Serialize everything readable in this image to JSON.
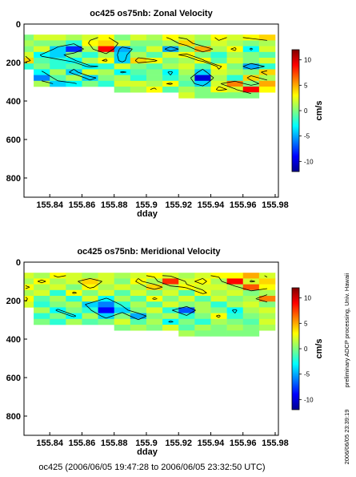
{
  "chart_data": [
    {
      "type": "heatmap",
      "title": "oc425 os75nb: Zonal Velocity",
      "xlabel": "dday",
      "ylabel": "",
      "xlim": [
        155.824,
        155.982
      ],
      "ylim": [
        900,
        0
      ],
      "x_ticks": [
        "155.84",
        "155.86",
        "155.88",
        "155.9",
        "155.92",
        "155.94",
        "155.96",
        "155.98"
      ],
      "y_ticks": [
        "0",
        "200",
        "400",
        "600",
        "800"
      ],
      "colorbar": {
        "label": "cm/s",
        "range": [
          -12,
          12
        ],
        "ticks": [
          "10",
          "5",
          "0",
          "-5",
          "-10"
        ]
      },
      "x": [
        155.825,
        155.835,
        155.845,
        155.855,
        155.865,
        155.875,
        155.885,
        155.895,
        155.905,
        155.915,
        155.925,
        155.935,
        155.945,
        155.955,
        155.965,
        155.975
      ],
      "depth": [
        70,
        100,
        130,
        160,
        190,
        220,
        250,
        280,
        310,
        340,
        370
      ],
      "max_depth": [
        230,
        310,
        320,
        330,
        330,
        330,
        340,
        360,
        350,
        360,
        370,
        380,
        380,
        380,
        370,
        360
      ],
      "values": [
        [
          0,
          2,
          2,
          1,
          2,
          3,
          0,
          2,
          1,
          3,
          2,
          1,
          3,
          2,
          3,
          4
        ],
        [
          1,
          0,
          0,
          -2,
          3,
          4,
          2,
          0,
          0,
          1,
          4,
          0,
          2,
          1,
          0,
          1
        ],
        [
          0,
          2,
          -4,
          -8,
          1,
          9,
          -5,
          -1,
          2,
          -5,
          0,
          5,
          1,
          3,
          -3,
          2
        ],
        [
          2,
          -3,
          -4,
          0,
          -2,
          1,
          -4,
          1,
          -1,
          2,
          3,
          0,
          -2,
          1,
          0,
          -1
        ],
        [
          4,
          -1,
          -2,
          -3,
          1,
          3,
          -4,
          4,
          3,
          0,
          1,
          3,
          -1,
          2,
          0,
          2
        ],
        [
          -2,
          0,
          -2,
          -1,
          -3,
          -2,
          2,
          0,
          -1,
          1,
          2,
          -1,
          3,
          0,
          -5,
          -2
        ],
        [
          0,
          -3,
          1,
          -4,
          2,
          1,
          -3,
          -1,
          0,
          -3,
          1,
          -4,
          2,
          1,
          0,
          4
        ],
        [
          0,
          -6,
          -1,
          1,
          -4,
          0,
          1,
          -2,
          0,
          -2,
          0,
          -10,
          1,
          -2,
          4,
          1
        ],
        [
          0,
          1,
          -4,
          -3,
          0,
          -2,
          2,
          2,
          1,
          3,
          -1,
          -4,
          2,
          6,
          0,
          5
        ],
        [
          0,
          0,
          0,
          0,
          0,
          0,
          0,
          1,
          3,
          -1,
          1,
          0,
          3,
          2,
          9,
          3
        ],
        [
          0,
          0,
          0,
          0,
          0,
          0,
          0,
          0,
          0,
          0,
          2,
          0,
          0,
          0,
          0,
          0
        ]
      ]
    },
    {
      "type": "heatmap",
      "title": "oc425 os75nb: Meridional Velocity",
      "xlabel": "dday",
      "ylabel": "",
      "xlim": [
        155.824,
        155.982
      ],
      "ylim": [
        900,
        0
      ],
      "x_ticks": [
        "155.84",
        "155.86",
        "155.88",
        "155.9",
        "155.92",
        "155.94",
        "155.96",
        "155.98"
      ],
      "y_ticks": [
        "0",
        "200",
        "400",
        "600",
        "800"
      ],
      "colorbar": {
        "label": "cm/s",
        "range": [
          -12,
          12
        ],
        "ticks": [
          "10",
          "5",
          "0",
          "-5",
          "-10"
        ]
      },
      "x": [
        155.825,
        155.835,
        155.845,
        155.855,
        155.865,
        155.875,
        155.885,
        155.895,
        155.905,
        155.915,
        155.925,
        155.935,
        155.945,
        155.955,
        155.965,
        155.975
      ],
      "depth": [
        70,
        100,
        130,
        160,
        190,
        220,
        250,
        280,
        310,
        340,
        370
      ],
      "max_depth": [
        230,
        310,
        320,
        330,
        330,
        330,
        340,
        360,
        350,
        360,
        370,
        380,
        380,
        380,
        370,
        360
      ],
      "values": [
        [
          2,
          1,
          3,
          2,
          1,
          2,
          1,
          2,
          3,
          2,
          1,
          2,
          3,
          3,
          5,
          2
        ],
        [
          1,
          3,
          1,
          2,
          4,
          2,
          0,
          3,
          1,
          8,
          2,
          3,
          1,
          9,
          2,
          4
        ],
        [
          3,
          1,
          2,
          0,
          3,
          1,
          2,
          1,
          4,
          1,
          3,
          2,
          2,
          1,
          7,
          3
        ],
        [
          1,
          2,
          -2,
          3,
          0,
          2,
          -1,
          2,
          0,
          2,
          -1,
          3,
          1,
          2,
          0,
          1
        ],
        [
          3,
          -1,
          1,
          -2,
          2,
          -3,
          1,
          -1,
          3,
          0,
          2,
          -1,
          2,
          0,
          1,
          6
        ],
        [
          2,
          -2,
          0,
          1,
          -4,
          -6,
          -2,
          1,
          -1,
          2,
          0,
          1,
          -2,
          1,
          2,
          0
        ],
        [
          0,
          1,
          -3,
          0,
          -2,
          -9,
          -4,
          0,
          2,
          -2,
          -7,
          1,
          0,
          -3,
          1,
          2
        ],
        [
          1,
          -2,
          0,
          -3,
          1,
          -4,
          0,
          -5,
          0,
          1,
          -2,
          0,
          3,
          -2,
          0,
          1
        ],
        [
          0,
          0,
          -2,
          1,
          -1,
          0,
          2,
          -1,
          1,
          -3,
          0,
          -2,
          1,
          0,
          -1,
          2
        ],
        [
          0,
          0,
          0,
          0,
          0,
          0,
          0,
          1,
          0,
          2,
          -1,
          1,
          0,
          1,
          0,
          1
        ],
        [
          0,
          0,
          0,
          0,
          0,
          0,
          0,
          0,
          0,
          0,
          1,
          0,
          0,
          0,
          0,
          0
        ]
      ]
    }
  ],
  "footer": "oc425 (2006/06/05 19:47:28 to 2006/06/05 23:32:50 UTC)",
  "side_note": "preliminary ADCP processing,   Univ. Hawaii",
  "side_stamp": "2006/06/05 23:39:19"
}
